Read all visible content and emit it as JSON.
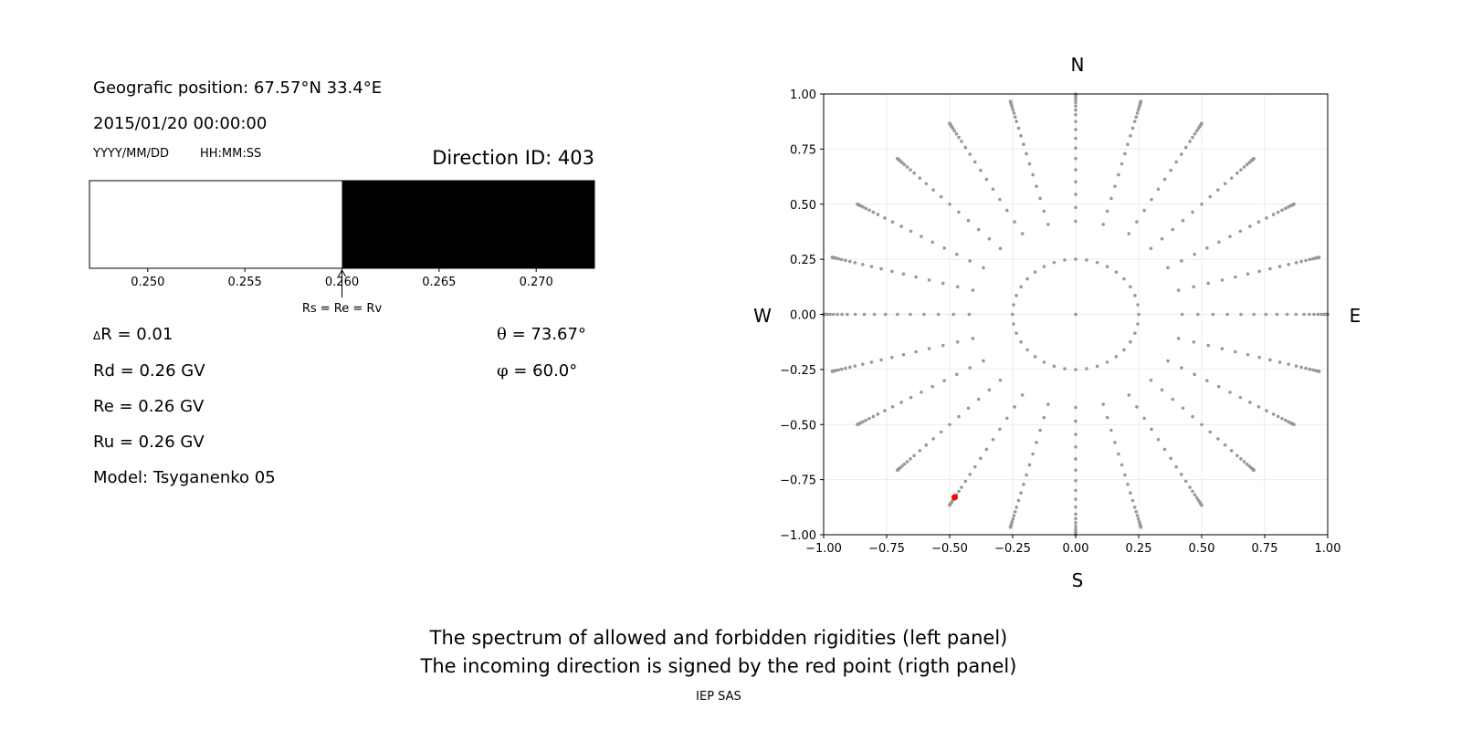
{
  "left_panel": {
    "position": "Geografic position: 67.57°N 33.4°E",
    "datetime": "2015/01/20 00:00:00",
    "date_format": "YYYY/MM/DD",
    "time_format": "HH:MM:SS",
    "direction_id": "Direction ID: 403",
    "delta_r_symbol": "Δ",
    "delta_r": "R = 0.01",
    "rd": "Rd = 0.26 GV",
    "re": "Re = 0.26 GV",
    "ru": "Ru = 0.26 GV",
    "model": "Model: Tsyganenko 05",
    "theta_symbol": "θ",
    "theta": " = 73.67°",
    "phi_symbol": "φ",
    "phi": " = 60.0°"
  },
  "footer": {
    "line1": "The spectrum of allowed and forbidden rigidities (left panel)",
    "line2": "The incoming direction is signed by the red point (rigth panel)",
    "credit": "IEP SAS"
  },
  "chart_data": [
    {
      "type": "bar",
      "xlim": [
        0.247,
        0.273
      ],
      "xticks": [
        "0.250",
        "0.255",
        "0.260",
        "0.265",
        "0.270"
      ],
      "tick_values": [
        0.25,
        0.255,
        0.26,
        0.265,
        0.27
      ],
      "segments": [
        {
          "from": 0.247,
          "to": 0.26,
          "state": "allowed",
          "color": "#ffffff"
        },
        {
          "from": 0.26,
          "to": 0.273,
          "state": "forbidden",
          "color": "#000000"
        }
      ],
      "annotation": {
        "text": "Rs = Re = Rv",
        "x": 0.26
      }
    },
    {
      "type": "scatter",
      "xlim": [
        -1.0,
        1.0
      ],
      "ylim": [
        -1.0,
        1.0
      ],
      "xticks": [
        "−1.00",
        "−0.75",
        "−0.50",
        "−0.25",
        "0.00",
        "0.25",
        "0.50",
        "0.75",
        "1.00"
      ],
      "yticks": [
        "1.00",
        "0.75",
        "0.50",
        "0.25",
        "0.00",
        "−0.25",
        "−0.50",
        "−0.75",
        "−1.00"
      ],
      "tick_values": [
        -1.0,
        -0.75,
        -0.5,
        -0.25,
        0,
        0.25,
        0.5,
        0.75,
        1.0
      ],
      "grid": true,
      "compass": {
        "n": "N",
        "s": "S",
        "w": "W",
        "e": "E"
      },
      "grid_color": "#999999",
      "highlight_color": "#ff0000",
      "grid_azimuth_step_deg": 15,
      "ring_zenith_deg": 14.5,
      "ring_points": 36,
      "ray_zenith_deg": [
        25,
        29,
        33,
        37,
        41,
        45,
        49,
        53,
        57,
        61,
        65,
        68,
        71,
        74,
        77,
        80,
        82,
        84,
        86,
        88,
        90
      ],
      "highlight": {
        "theta_deg": 73.67,
        "phi_deg": 60.0,
        "x": -0.48,
        "y": -0.83
      }
    }
  ]
}
